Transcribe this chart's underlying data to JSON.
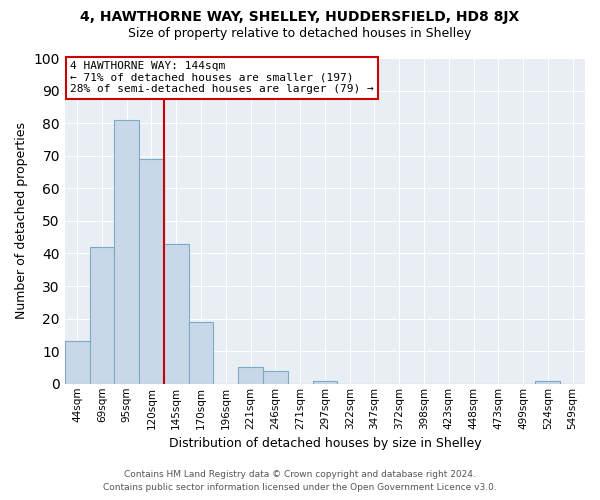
{
  "title": "4, HAWTHORNE WAY, SHELLEY, HUDDERSFIELD, HD8 8JX",
  "subtitle": "Size of property relative to detached houses in Shelley",
  "xlabel": "Distribution of detached houses by size in Shelley",
  "ylabel": "Number of detached properties",
  "bar_labels": [
    "44sqm",
    "69sqm",
    "95sqm",
    "120sqm",
    "145sqm",
    "170sqm",
    "196sqm",
    "221sqm",
    "246sqm",
    "271sqm",
    "297sqm",
    "322sqm",
    "347sqm",
    "372sqm",
    "398sqm",
    "423sqm",
    "448sqm",
    "473sqm",
    "499sqm",
    "524sqm",
    "549sqm"
  ],
  "bar_values": [
    13,
    42,
    81,
    69,
    43,
    19,
    0,
    5,
    4,
    0,
    1,
    0,
    0,
    0,
    0,
    0,
    0,
    0,
    0,
    1,
    0
  ],
  "bar_color": "#c8d8e8",
  "bar_edge_color": "#7aaac8",
  "vline_color": "#cc0000",
  "vline_x_index": 4,
  "annotation_lines": [
    "4 HAWTHORNE WAY: 144sqm",
    "← 71% of detached houses are smaller (197)",
    "28% of semi-detached houses are larger (79) →"
  ],
  "annotation_box_color": "#cc0000",
  "ylim": [
    0,
    100
  ],
  "yticks": [
    0,
    10,
    20,
    30,
    40,
    50,
    60,
    70,
    80,
    90,
    100
  ],
  "background_color": "#e8eef4",
  "footer_line1": "Contains HM Land Registry data © Crown copyright and database right 2024.",
  "footer_line2": "Contains public sector information licensed under the Open Government Licence v3.0."
}
